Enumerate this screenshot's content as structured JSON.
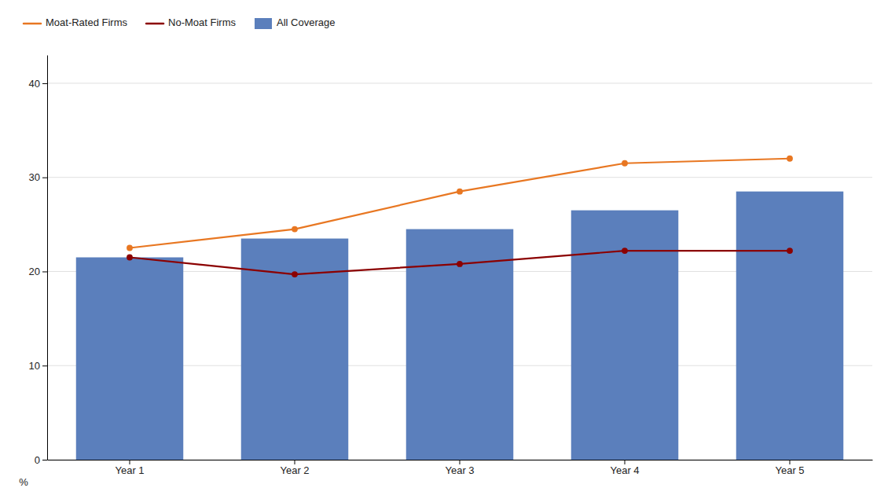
{
  "chart_data": {
    "type": "bar",
    "categories": [
      "Year 1",
      "Year 2",
      "Year 3",
      "Year 4",
      "Year 5"
    ],
    "series": [
      {
        "name": "Moat-Rated Firms",
        "type": "line",
        "color": "#e87722",
        "marker": "circle",
        "values": [
          22.5,
          24.5,
          28.5,
          31.5,
          32.0
        ]
      },
      {
        "name": "No-Moat Firms",
        "type": "line",
        "color": "#8b0000",
        "marker": "circle",
        "values": [
          21.5,
          19.7,
          20.8,
          22.2,
          22.2
        ]
      },
      {
        "name": "All Coverage",
        "type": "bar",
        "color": "#5b7fbc",
        "values": [
          21.5,
          23.5,
          24.5,
          26.5,
          28.5
        ]
      }
    ],
    "ylabel": "%",
    "ylim": [
      0,
      43
    ],
    "yticks": [
      0,
      10,
      20,
      30,
      40
    ],
    "grid": true,
    "legend": "top"
  }
}
